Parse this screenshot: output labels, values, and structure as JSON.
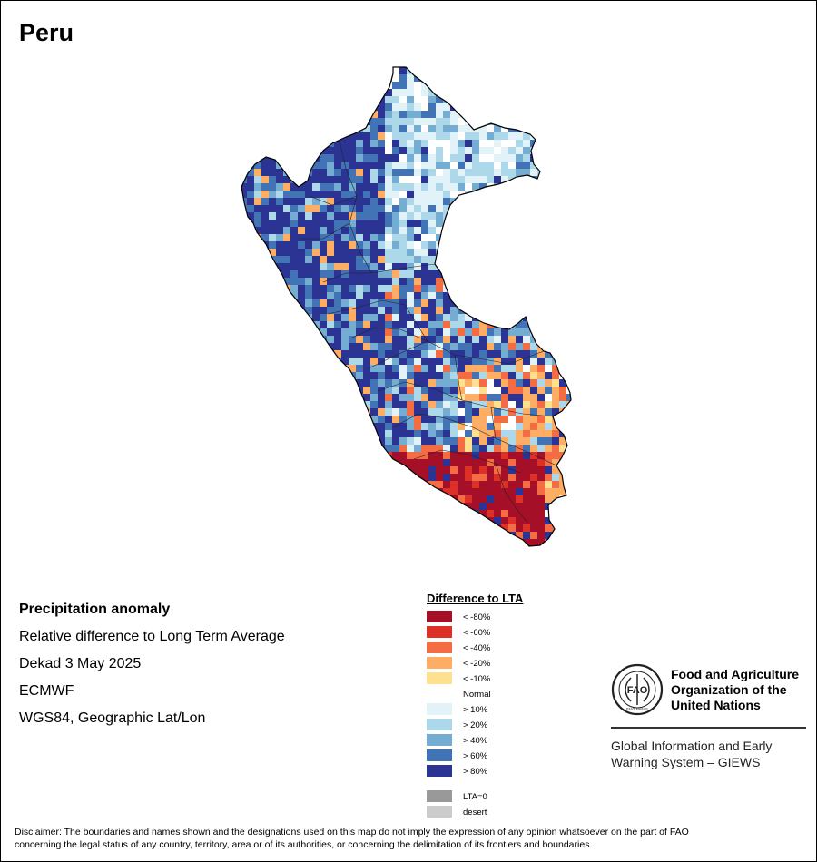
{
  "title": "Peru",
  "info": {
    "heading": "Precipitation anomaly",
    "line1": "Relative difference to Long Term Average",
    "line2": "Dekad 3 May 2025",
    "line3": "ECMWF",
    "line4": "WGS84, Geographic Lat/Lon"
  },
  "legend": {
    "title": "Difference to LTA",
    "classes": [
      {
        "label": "< -80%",
        "color": "#a50f28"
      },
      {
        "label": "< -60%",
        "color": "#dd3127"
      },
      {
        "label": "< -40%",
        "color": "#f46c44"
      },
      {
        "label": "< -20%",
        "color": "#fdae64"
      },
      {
        "label": "< -10%",
        "color": "#fee08e"
      },
      {
        "label": "Normal",
        "color": "#ffffff"
      },
      {
        "label": "> 10%",
        "color": "#e1f3f8"
      },
      {
        "label": "> 20%",
        "color": "#acd8ea"
      },
      {
        "label": "> 40%",
        "color": "#74acd2"
      },
      {
        "label": "> 60%",
        "color": "#4273b5"
      },
      {
        "label": "> 80%",
        "color": "#2b3493"
      }
    ],
    "extra": [
      {
        "label": "LTA=0",
        "color": "#999999"
      },
      {
        "label": "desert",
        "color": "#cccccc"
      }
    ]
  },
  "fao": {
    "logo_text": "FAO",
    "logo_motto": "FIAT PANIS",
    "name_line1": "Food and Agriculture",
    "name_line2": "Organization of the",
    "name_line3": "United Nations",
    "system_line1": "Global Information and Early",
    "system_line2": "Warning System – GIEWS"
  },
  "disclaimer_line1": "Disclaimer: The boundaries and names shown and the designations used on this map do not imply the expression of any opinion whatsoever on the part of FAO",
  "disclaimer_line2": "concerning the legal status of any country, territory, area or of its authorities, or concerning the delimitation of its frontiers and boundaries."
}
